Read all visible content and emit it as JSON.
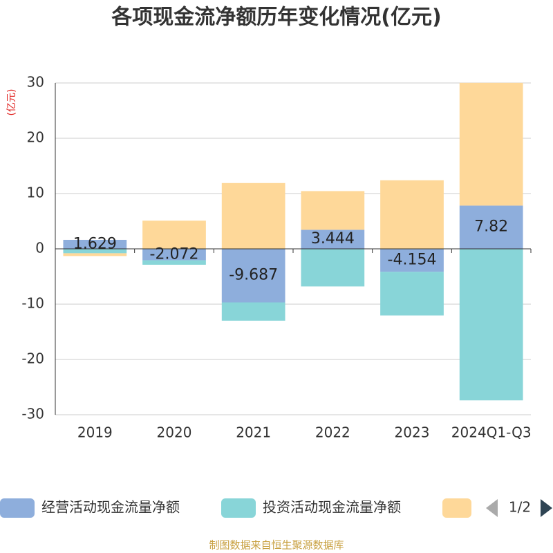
{
  "chart_data": {
    "type": "bar",
    "stacked": true,
    "title": "各项现金流净额历年变化情况(亿元)",
    "y_unit": "(亿元)",
    "categories": [
      "2019",
      "2020",
      "2021",
      "2022",
      "2023",
      "2024Q1-Q3"
    ],
    "series": [
      {
        "name": "经营活动现金流量净额",
        "color": "#8eaedc",
        "values": [
          1.629,
          -2.072,
          -9.687,
          3.444,
          -4.154,
          7.82
        ],
        "labels": true
      },
      {
        "name": "投资活动现金流量净额",
        "color": "#88d5d8",
        "values": [
          -0.8,
          -0.8,
          -3.3,
          -6.8,
          -7.9,
          -27.4
        ]
      },
      {
        "color": "#fed899",
        "values": [
          -0.5,
          5.1,
          11.9,
          7.0,
          12.4,
          22.2
        ]
      }
    ],
    "ylim": [
      -30,
      30
    ],
    "yticks": [
      -30,
      -20,
      -10,
      0,
      10,
      20,
      30
    ],
    "grid": true,
    "legend_page": "1/2",
    "source": "制图数据来自恒生聚源数据库"
  }
}
